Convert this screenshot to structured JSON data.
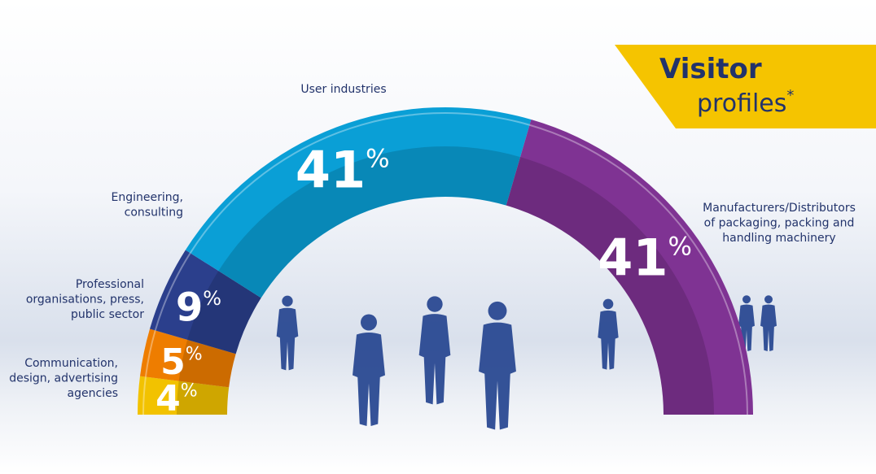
{
  "chart_data": {
    "type": "pie",
    "title": "Visitor",
    "subtitle": "profiles",
    "title_mark": "*",
    "unit": "%",
    "categories": [
      [
        "Communication,",
        "design, advertising",
        "agencies"
      ],
      [
        "Professional",
        "organisations, press,",
        "public sector"
      ],
      [
        "Engineering,",
        "consulting"
      ],
      [
        "User industries"
      ],
      [
        "Manufacturers/Distributors",
        "of packaging, packing and",
        "handling machinery"
      ]
    ],
    "values": [
      4,
      5,
      9,
      41,
      41
    ],
    "colors": [
      "#f2c200",
      "#ee7d00",
      "#2b3f8c",
      "#0a9fd6",
      "#7f3393"
    ]
  }
}
